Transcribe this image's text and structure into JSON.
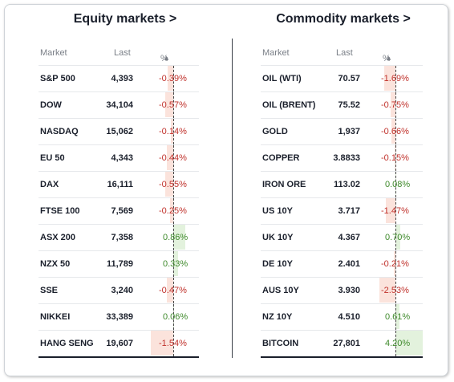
{
  "equity": {
    "title": "Equity markets >",
    "headers": {
      "market": "Market",
      "last": "Last",
      "pct": "%"
    },
    "rows": [
      {
        "market": "S&P 500",
        "last": "4,393",
        "pct": "-0.39%",
        "change": -0.39
      },
      {
        "market": "DOW",
        "last": "34,104",
        "pct": "-0.57%",
        "change": -0.57
      },
      {
        "market": "NASDAQ",
        "last": "15,062",
        "pct": "-0.14%",
        "change": -0.14
      },
      {
        "market": "EU 50",
        "last": "4,343",
        "pct": "-0.44%",
        "change": -0.44
      },
      {
        "market": "DAX",
        "last": "16,111",
        "pct": "-0.55%",
        "change": -0.55
      },
      {
        "market": "FTSE 100",
        "last": "7,569",
        "pct": "-0.25%",
        "change": -0.25
      },
      {
        "market": "ASX 200",
        "last": "7,358",
        "pct": "0.86%",
        "change": 0.86
      },
      {
        "market": "NZX 50",
        "last": "11,789",
        "pct": "0.33%",
        "change": 0.33
      },
      {
        "market": "SSE",
        "last": "3,240",
        "pct": "-0.47%",
        "change": -0.47
      },
      {
        "market": "NIKKEI",
        "last": "33,389",
        "pct": "0.06%",
        "change": 0.06
      },
      {
        "market": "HANG SENG",
        "last": "19,607",
        "pct": "-1.54%",
        "change": -1.54
      }
    ]
  },
  "commodity": {
    "title": "Commodity markets >",
    "headers": {
      "market": "Market",
      "last": "Last",
      "pct": "%"
    },
    "rows": [
      {
        "market": "OIL (WTI)",
        "last": "70.57",
        "pct": "-1.69%",
        "change": -1.69
      },
      {
        "market": "OIL (BRENT)",
        "last": "75.52",
        "pct": "-0.75%",
        "change": -0.75
      },
      {
        "market": "GOLD",
        "last": "1,937",
        "pct": "-0.66%",
        "change": -0.66
      },
      {
        "market": "COPPER",
        "last": "3.8833",
        "pct": "-0.15%",
        "change": -0.15
      },
      {
        "market": "IRON ORE",
        "last": "113.02",
        "pct": "0.08%",
        "change": 0.08
      },
      {
        "market": "US 10Y",
        "last": "3.717",
        "pct": "-1.47%",
        "change": -1.47
      },
      {
        "market": "UK 10Y",
        "last": "4.367",
        "pct": "0.70%",
        "change": 0.7
      },
      {
        "market": "DE 10Y",
        "last": "2.401",
        "pct": "-0.21%",
        "change": -0.21
      },
      {
        "market": "AUS 10Y",
        "last": "3.930",
        "pct": "-2.53%",
        "change": -2.53
      },
      {
        "market": "NZ 10Y",
        "last": "4.510",
        "pct": "0.61%",
        "change": 0.61
      },
      {
        "market": "BITCOIN",
        "last": "27,801",
        "pct": "4.20%",
        "change": 4.2
      }
    ]
  },
  "sort_icon": "▲",
  "colors": {
    "negative": "#c0312b",
    "positive": "#3f8a2c",
    "negative_bar": "#fbe3dc",
    "positive_bar": "#e3f2dd"
  }
}
